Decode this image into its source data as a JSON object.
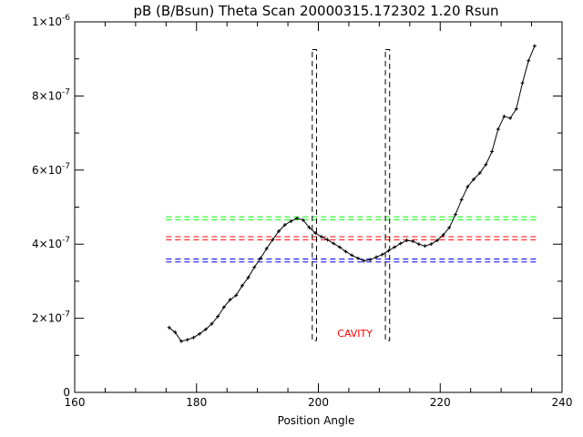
{
  "chart_data": {
    "type": "line",
    "title": "pB (B/Bsun) Theta Scan 20000315.172302  1.20 Rsun",
    "xlabel": "Position Angle",
    "ylabel": "",
    "xlim": [
      160,
      240
    ],
    "ylim": [
      0,
      1e-06
    ],
    "x_ticks": [
      {
        "value": 160,
        "label": "160"
      },
      {
        "value": 180,
        "label": "180"
      },
      {
        "value": 200,
        "label": "200"
      },
      {
        "value": 220,
        "label": "220"
      },
      {
        "value": 240,
        "label": "240"
      }
    ],
    "y_ticks": [
      {
        "value": 0,
        "label": "0"
      },
      {
        "value": 2e-07,
        "mant": "2",
        "exp": "-7"
      },
      {
        "value": 4e-07,
        "mant": "4",
        "exp": "-7"
      },
      {
        "value": 6e-07,
        "mant": "6",
        "exp": "-7"
      },
      {
        "value": 8e-07,
        "mant": "8",
        "exp": "-7"
      },
      {
        "value": 1e-06,
        "mant": "1",
        "exp": "-6"
      }
    ],
    "series": [
      {
        "color": "#000000",
        "x": [
          175.5,
          176.5,
          177.5,
          178.5,
          179.5,
          180.5,
          181.5,
          182.5,
          183.5,
          184.5,
          185.5,
          186.5,
          187.5,
          188.5,
          189.5,
          190.5,
          191.5,
          192.5,
          193.5,
          194.5,
          195.5,
          196.5,
          197.5,
          198.5,
          199.5,
          200.5,
          201.5,
          202.5,
          203.5,
          204.5,
          205.5,
          206.5,
          207.5,
          208.5,
          209.5,
          210.5,
          211.5,
          212.5,
          213.5,
          214.5,
          215.5,
          216.5,
          217.5,
          218.5,
          219.5,
          220.5,
          221.5,
          222.5,
          223.5,
          224.5,
          225.5,
          226.5,
          227.5,
          228.5,
          229.5,
          230.5,
          231.5,
          232.5,
          233.5,
          234.5,
          235.5
        ],
        "y": [
          1.75e-07,
          1.62e-07,
          1.38e-07,
          1.42e-07,
          1.48e-07,
          1.58e-07,
          1.7e-07,
          1.85e-07,
          2.05e-07,
          2.3e-07,
          2.5e-07,
          2.62e-07,
          2.88e-07,
          3.1e-07,
          3.38e-07,
          3.62e-07,
          3.88e-07,
          4.12e-07,
          4.35e-07,
          4.52e-07,
          4.62e-07,
          4.7e-07,
          4.65e-07,
          4.45e-07,
          4.3e-07,
          4.2e-07,
          4.12e-07,
          4.02e-07,
          3.92e-07,
          3.8e-07,
          3.7e-07,
          3.62e-07,
          3.55e-07,
          3.58e-07,
          3.65e-07,
          3.72e-07,
          3.82e-07,
          3.92e-07,
          4.02e-07,
          4.1e-07,
          4.08e-07,
          4e-07,
          3.95e-07,
          4e-07,
          4.1e-07,
          4.25e-07,
          4.45e-07,
          4.8e-07,
          5.2e-07,
          5.55e-07,
          5.75e-07,
          5.92e-07,
          6.15e-07,
          6.5e-07,
          7.1e-07,
          7.45e-07,
          7.4e-07,
          7.65e-07,
          8.35e-07,
          8.95e-07,
          9.35e-07
        ]
      }
    ],
    "hlines": [
      {
        "color": "#00ff00",
        "y": 4.74e-07
      },
      {
        "color": "#00ff00",
        "y": 4.66e-07
      },
      {
        "color": "#ff0000",
        "y": 4.2e-07
      },
      {
        "color": "#ff0000",
        "y": 4.12e-07
      },
      {
        "color": "#0000ff",
        "y": 3.6e-07
      },
      {
        "color": "#0000ff",
        "y": 3.52e-07
      }
    ],
    "hline_x_range": [
      175,
      236
    ],
    "cavity_boxes": [
      {
        "x_left": 199.0,
        "x_right": 199.7,
        "y_bottom": 1.4e-07,
        "y_top": 9.25e-07
      },
      {
        "x_left": 211.0,
        "x_right": 211.7,
        "y_bottom": 1.4e-07,
        "y_top": 9.25e-07
      }
    ],
    "annotations": [
      {
        "text": "CAVITY",
        "x": 206,
        "y": 1.5e-07,
        "color": "#ff0000"
      }
    ],
    "grid": false
  }
}
